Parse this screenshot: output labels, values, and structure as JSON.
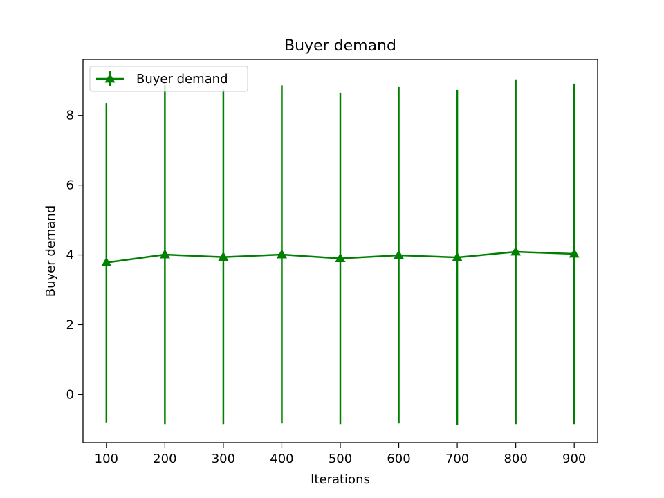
{
  "chart_data": {
    "type": "line",
    "title": "Buyer demand",
    "xlabel": "Iterations",
    "ylabel": "Buyer demand",
    "x": [
      100,
      200,
      300,
      400,
      500,
      600,
      700,
      800,
      900
    ],
    "series": [
      {
        "name": "Buyer demand",
        "color": "#008000",
        "marker": "triangle-up",
        "values": [
          3.78,
          4.01,
          3.94,
          4.01,
          3.9,
          3.99,
          3.93,
          4.09,
          4.03
        ],
        "err_lower": [
          -0.8,
          -0.85,
          -0.85,
          -0.83,
          -0.85,
          -0.83,
          -0.88,
          -0.85,
          -0.85
        ],
        "err_upper": [
          8.35,
          8.87,
          8.74,
          8.86,
          8.65,
          8.81,
          8.73,
          9.03,
          8.91
        ]
      }
    ],
    "xlim": [
      60,
      940
    ],
    "ylim": [
      -1.38,
      9.6
    ],
    "x_ticks": [
      100,
      200,
      300,
      400,
      500,
      600,
      700,
      800,
      900
    ],
    "y_ticks": [
      0,
      2,
      4,
      6,
      8
    ],
    "x_tick_labels": [
      "100",
      "200",
      "300",
      "400",
      "500",
      "600",
      "700",
      "800",
      "900"
    ],
    "y_tick_labels": [
      "0",
      "2",
      "4",
      "6",
      "8"
    ],
    "grid": false,
    "legend_position": "upper-left"
  }
}
